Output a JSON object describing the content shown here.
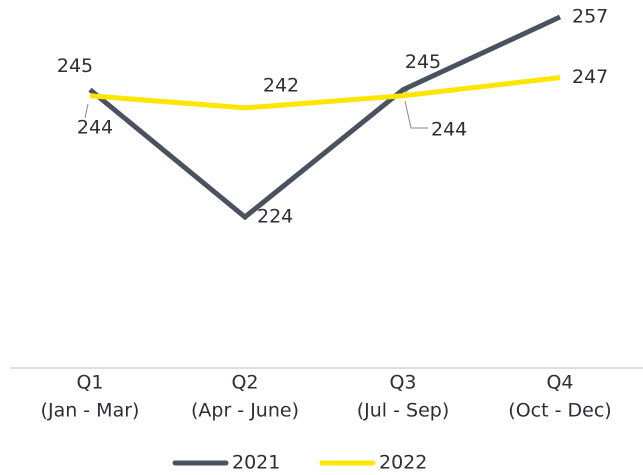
{
  "chart_data": {
    "type": "line",
    "categories": [
      [
        "Q1",
        "(Jan - Mar)"
      ],
      [
        "Q2",
        "(Apr - June)"
      ],
      [
        "Q3",
        "(Jul - Sep)"
      ],
      [
        "Q4",
        "(Oct - Dec)"
      ]
    ],
    "series": [
      {
        "name": "2021",
        "color": "#4a5260",
        "values": [
          245,
          224,
          245,
          257
        ]
      },
      {
        "name": "2022",
        "color": "#ffe600",
        "values": [
          244,
          242,
          244,
          247
        ]
      }
    ],
    "legend": "bottom"
  }
}
